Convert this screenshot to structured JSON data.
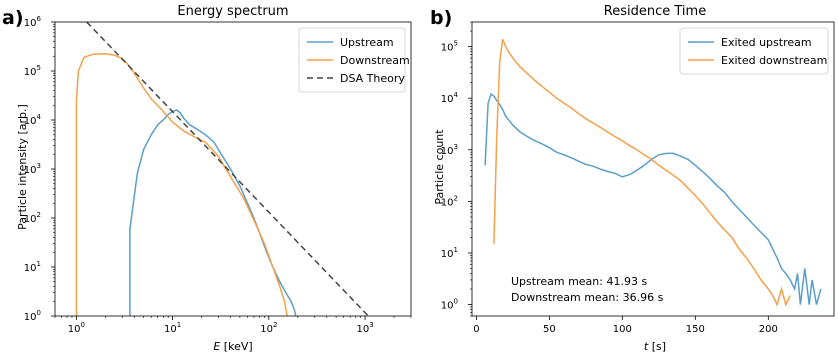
{
  "chart_data": [
    {
      "panel_label": "a)",
      "type": "line",
      "title": "Energy spectrum",
      "xlabel_italic": "E",
      "xlabel_unit": " [keV]",
      "ylabel": "Particle intensity [arb.]",
      "xscale": "log",
      "yscale": "log",
      "xlim": [
        0.6,
        3000
      ],
      "ylim": [
        1,
        1000000
      ],
      "xticks": [
        {
          "value": 1,
          "base": "10",
          "exp": "0"
        },
        {
          "value": 10,
          "base": "10",
          "exp": "1"
        },
        {
          "value": 100,
          "base": "10",
          "exp": "2"
        },
        {
          "value": 1000,
          "base": "10",
          "exp": "3"
        }
      ],
      "yticks": [
        {
          "value": 1,
          "base": "10",
          "exp": "0"
        },
        {
          "value": 10,
          "base": "10",
          "exp": "1"
        },
        {
          "value": 100,
          "base": "10",
          "exp": "2"
        },
        {
          "value": 1000,
          "base": "10",
          "exp": "3"
        },
        {
          "value": 10000,
          "base": "10",
          "exp": "4"
        },
        {
          "value": 100000,
          "base": "10",
          "exp": "5"
        },
        {
          "value": 1000000,
          "base": "10",
          "exp": "6"
        }
      ],
      "legend_position": "top-right",
      "series": [
        {
          "name": "Upstream",
          "color": "#5b9ec9",
          "dash": "",
          "x": [
            3.6,
            3.6,
            4.3,
            5,
            6,
            7,
            8,
            9,
            10,
            11,
            12,
            13,
            15,
            18,
            22,
            27,
            32,
            40,
            50,
            60,
            70,
            80,
            95,
            110,
            130,
            150,
            170,
            185,
            190
          ],
          "y": [
            1,
            60,
            800,
            2500,
            5000,
            8000,
            10000,
            13000,
            15000,
            16000,
            14000,
            11000,
            8000,
            6500,
            5000,
            3500,
            2000,
            1000,
            450,
            200,
            100,
            50,
            20,
            10,
            5,
            3,
            2,
            1.3,
            1
          ]
        },
        {
          "name": "Downstream",
          "color": "#f5a04a",
          "dash": "",
          "x": [
            1,
            1,
            1.05,
            1.2,
            1.5,
            2,
            2.5,
            3,
            3.5,
            4,
            5,
            6,
            8,
            10,
            13,
            17,
            22,
            30,
            40,
            55,
            70,
            90,
            110,
            130,
            145,
            155
          ],
          "y": [
            1,
            25000,
            100000,
            190000,
            220000,
            225000,
            210000,
            180000,
            130000,
            90000,
            45000,
            27000,
            15000,
            9000,
            6000,
            4500,
            3500,
            1800,
            700,
            250,
            90,
            30,
            10,
            4,
            2,
            1
          ]
        },
        {
          "name": "DSA Theory",
          "color": "#444444",
          "dash": "6,4",
          "x": [
            1.28,
            1080
          ],
          "y": [
            1000000,
            1
          ]
        }
      ]
    },
    {
      "panel_label": "b)",
      "type": "line",
      "title": "Residence Time",
      "xlabel_italic": "t",
      "xlabel_unit": " [s]",
      "ylabel": "Particle count",
      "xscale": "linear",
      "yscale": "log",
      "xlim": [
        -3,
        245
      ],
      "ylim": [
        0.6,
        300000
      ],
      "xticks": [
        {
          "value": 0,
          "label": "0"
        },
        {
          "value": 50,
          "label": "50"
        },
        {
          "value": 100,
          "label": "100"
        },
        {
          "value": 150,
          "label": "150"
        },
        {
          "value": 200,
          "label": "200"
        }
      ],
      "yticks": [
        {
          "value": 1,
          "base": "10",
          "exp": "0"
        },
        {
          "value": 10,
          "base": "10",
          "exp": "1"
        },
        {
          "value": 100,
          "base": "10",
          "exp": "2"
        },
        {
          "value": 1000,
          "base": "10",
          "exp": "3"
        },
        {
          "value": 10000,
          "base": "10",
          "exp": "4"
        },
        {
          "value": 100000,
          "base": "10",
          "exp": "5"
        }
      ],
      "legend_position": "top-right",
      "annotations": [
        "Upstream mean: 41.93 s",
        "Downstream mean: 36.96 s"
      ],
      "series": [
        {
          "name": "Exited upstream",
          "color": "#5b9ec9",
          "x": [
            6,
            8,
            10,
            12,
            14,
            16,
            18,
            20,
            25,
            30,
            35,
            40,
            45,
            50,
            55,
            60,
            65,
            70,
            75,
            80,
            85,
            90,
            95,
            100,
            105,
            110,
            115,
            120,
            125,
            130,
            135,
            140,
            145,
            150,
            155,
            160,
            165,
            170,
            175,
            180,
            185,
            190,
            195,
            200,
            203,
            206,
            209,
            212,
            215,
            218,
            220,
            222,
            225,
            228,
            230,
            233,
            236
          ],
          "y": [
            500,
            8000,
            12000,
            11000,
            9000,
            7500,
            6000,
            4500,
            3000,
            2200,
            1800,
            1500,
            1300,
            1100,
            900,
            800,
            700,
            600,
            520,
            480,
            420,
            380,
            350,
            300,
            330,
            400,
            500,
            650,
            800,
            850,
            850,
            750,
            650,
            500,
            380,
            280,
            200,
            150,
            100,
            70,
            50,
            35,
            25,
            18,
            12,
            8,
            5,
            4,
            3,
            2,
            4,
            1,
            5,
            1,
            3,
            1,
            2
          ]
        },
        {
          "name": "Exited downstream",
          "color": "#f5a04a",
          "x": [
            12,
            14,
            16,
            18,
            20,
            22,
            25,
            30,
            35,
            40,
            45,
            50,
            55,
            60,
            65,
            70,
            75,
            80,
            85,
            90,
            95,
            100,
            105,
            110,
            115,
            120,
            125,
            130,
            135,
            140,
            145,
            150,
            155,
            160,
            165,
            170,
            175,
            180,
            185,
            190,
            195,
            200,
            203,
            206,
            209,
            212,
            215
          ],
          "y": [
            15,
            2000,
            50000,
            140000,
            100000,
            80000,
            60000,
            40000,
            30000,
            22000,
            17000,
            13000,
            10000,
            8000,
            6500,
            5000,
            4000,
            3300,
            2700,
            2200,
            1800,
            1500,
            1200,
            1000,
            800,
            650,
            500,
            400,
            320,
            250,
            180,
            130,
            90,
            60,
            40,
            28,
            20,
            12,
            8,
            5,
            3,
            2,
            1.5,
            1,
            2,
            1,
            1.5
          ]
        }
      ]
    }
  ]
}
